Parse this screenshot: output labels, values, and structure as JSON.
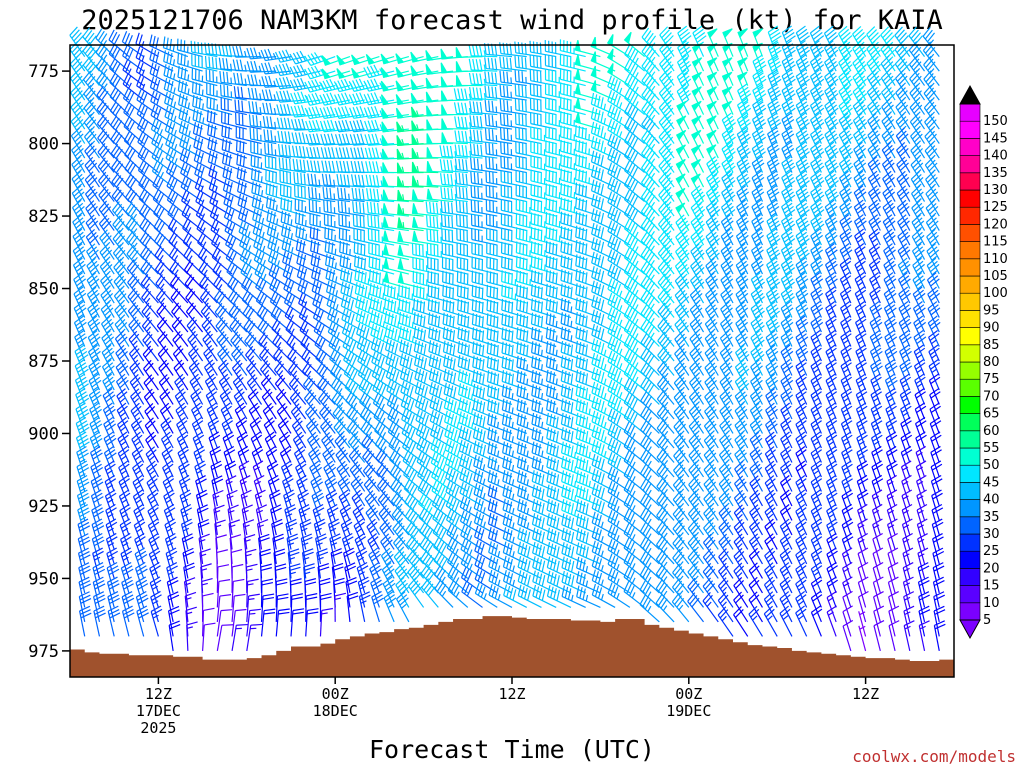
{
  "chart_data": {
    "type": "wind-barb-time-height",
    "title": "2025121706 NAM3KM forecast wind profile (kt) for KAIA",
    "xlabel": "Forecast Time (UTC)",
    "units": "kt",
    "x_range_hours": [
      0,
      60
    ],
    "y_range_hpa": [
      766,
      984
    ],
    "y_ticks": [
      {
        "value": 775,
        "label": "775"
      },
      {
        "value": 800,
        "label": "800"
      },
      {
        "value": 825,
        "label": "825"
      },
      {
        "value": 850,
        "label": "850"
      },
      {
        "value": 875,
        "label": "875"
      },
      {
        "value": 900,
        "label": "900"
      },
      {
        "value": 925,
        "label": "925"
      },
      {
        "value": 950,
        "label": "950"
      },
      {
        "value": 975,
        "label": "975"
      }
    ],
    "x_ticks": [
      {
        "hour": 6,
        "lines": [
          "12Z",
          "17DEC",
          "2025"
        ]
      },
      {
        "hour": 18,
        "lines": [
          "00Z",
          "18DEC"
        ]
      },
      {
        "hour": 30,
        "lines": [
          "12Z"
        ]
      },
      {
        "hour": 42,
        "lines": [
          "00Z",
          "19DEC"
        ]
      },
      {
        "hour": 54,
        "lines": [
          "12Z"
        ]
      }
    ],
    "colorbar": {
      "levels": [
        5,
        10,
        15,
        20,
        25,
        30,
        35,
        40,
        45,
        50,
        55,
        60,
        65,
        70,
        75,
        80,
        85,
        90,
        95,
        100,
        105,
        110,
        115,
        120,
        125,
        130,
        135,
        140,
        145,
        150
      ],
      "labels": [
        "5",
        "10",
        "15",
        "20",
        "25",
        "30",
        "35",
        "40",
        "45",
        "50",
        "55",
        "60",
        "65",
        "70",
        "75",
        "80",
        "85",
        "90",
        "95",
        "100",
        "105",
        "110",
        "115",
        "120",
        "125",
        "130",
        "135",
        "140",
        "145",
        "150"
      ],
      "colors": [
        "#7b00ff",
        "#5a00ff",
        "#3200ff",
        "#0000ff",
        "#0032ff",
        "#0064ff",
        "#0096ff",
        "#00beff",
        "#00e6ff",
        "#00ffd2",
        "#00ff96",
        "#00ff5a",
        "#00ff00",
        "#5aff00",
        "#96ff00",
        "#d2ff00",
        "#ffff00",
        "#ffe100",
        "#ffc800",
        "#ffaa00",
        "#ff9100",
        "#ff7800",
        "#ff5000",
        "#ff2800",
        "#ff0000",
        "#ff0050",
        "#ff0096",
        "#ff00c8",
        "#ff00ff",
        "#e600ff"
      ]
    },
    "terrain_surface_hpa": [
      [
        0,
        974.5
      ],
      [
        1,
        975.5
      ],
      [
        2,
        976
      ],
      [
        3,
        976
      ],
      [
        4,
        976.5
      ],
      [
        5,
        976.5
      ],
      [
        6,
        976.5
      ],
      [
        7,
        977
      ],
      [
        8,
        977
      ],
      [
        9,
        978
      ],
      [
        10,
        978
      ],
      [
        11,
        978
      ],
      [
        12,
        977.5
      ],
      [
        13,
        976.5
      ],
      [
        14,
        975
      ],
      [
        15,
        973.5
      ],
      [
        16,
        973.5
      ],
      [
        17,
        972.5
      ],
      [
        18,
        971
      ],
      [
        19,
        970
      ],
      [
        20,
        969
      ],
      [
        21,
        968.5
      ],
      [
        22,
        967.5
      ],
      [
        23,
        967
      ],
      [
        24,
        966
      ],
      [
        25,
        965
      ],
      [
        26,
        964
      ],
      [
        27,
        964
      ],
      [
        28,
        963
      ],
      [
        29,
        963
      ],
      [
        30,
        963.5
      ],
      [
        31,
        964
      ],
      [
        32,
        964
      ],
      [
        33,
        964
      ],
      [
        34,
        964.5
      ],
      [
        35,
        964.5
      ],
      [
        36,
        965
      ],
      [
        37,
        964
      ],
      [
        38,
        964
      ],
      [
        39,
        966
      ],
      [
        40,
        967
      ],
      [
        41,
        968
      ],
      [
        42,
        969
      ],
      [
        43,
        970
      ],
      [
        44,
        971
      ],
      [
        45,
        972
      ],
      [
        46,
        973
      ],
      [
        47,
        973.5
      ],
      [
        48,
        974
      ],
      [
        49,
        975
      ],
      [
        50,
        975.5
      ],
      [
        51,
        976
      ],
      [
        52,
        976.5
      ],
      [
        53,
        977
      ],
      [
        54,
        977.5
      ],
      [
        55,
        977.5
      ],
      [
        56,
        978
      ],
      [
        57,
        978.5
      ],
      [
        58,
        978.5
      ],
      [
        59,
        978
      ],
      [
        60,
        977
      ]
    ],
    "wind_field": {
      "time_step_hours": 1,
      "levels_hpa": [
        770,
        775,
        780,
        785,
        790,
        795,
        800,
        805,
        810,
        815,
        820,
        825,
        830,
        835,
        840,
        845,
        850,
        855,
        860,
        865,
        870,
        875,
        880,
        885,
        890,
        895,
        900,
        905,
        910,
        915,
        920,
        925,
        930,
        935,
        940,
        945,
        950,
        955,
        960,
        965,
        970,
        975
      ],
      "keyframes": [
        {
          "hour": 0,
          "dir_top": 330,
          "spd_top": 40,
          "dir_bot": 350,
          "spd_bot": 35
        },
        {
          "hour": 6,
          "dir_top": 300,
          "spd_top": 30,
          "dir_bot": 345,
          "spd_bot": 22
        },
        {
          "hour": 10,
          "dir_top": 280,
          "spd_top": 35,
          "dir_bot": 10,
          "spd_bot": 12
        },
        {
          "hour": 18,
          "dir_top": 250,
          "spd_top": 42,
          "dir_bot": 5,
          "spd_bot": 20
        },
        {
          "hour": 24,
          "dir_top": 255,
          "spd_top": 55,
          "dir_bot": 330,
          "spd_bot": 35
        },
        {
          "hour": 30,
          "dir_top": 275,
          "spd_top": 40,
          "dir_bot": 300,
          "spd_bot": 35
        },
        {
          "hour": 36,
          "dir_top": 285,
          "spd_top": 45,
          "dir_bot": 295,
          "spd_bot": 38
        },
        {
          "hour": 42,
          "dir_top": 335,
          "spd_top": 50,
          "dir_bot": 320,
          "spd_bot": 30
        },
        {
          "hour": 48,
          "dir_top": 340,
          "spd_top": 45,
          "dir_bot": 330,
          "spd_bot": 22
        },
        {
          "hour": 54,
          "dir_top": 330,
          "spd_top": 42,
          "dir_bot": 345,
          "spd_bot": 10
        },
        {
          "hour": 60,
          "dir_top": 320,
          "spd_top": 40,
          "dir_bot": 350,
          "spd_bot": 15
        }
      ]
    },
    "credit": "coolwx.com/models"
  }
}
